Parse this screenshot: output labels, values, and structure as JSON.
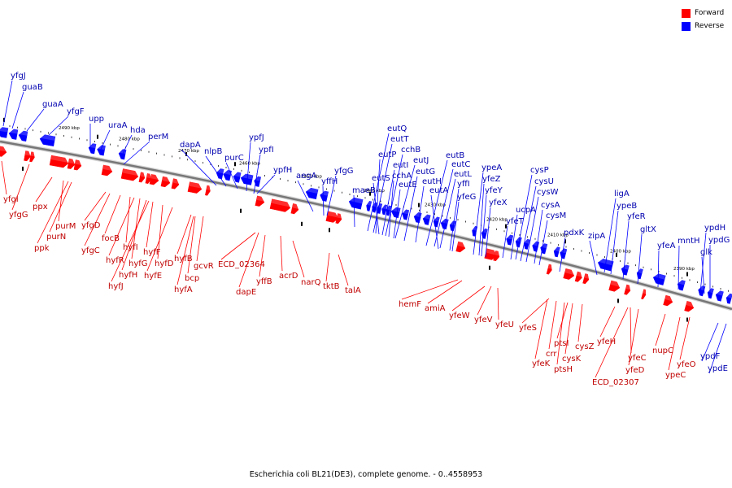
{
  "colors": {
    "forward": "#ff0000",
    "reverse": "#0000ff",
    "backbone": "#777777",
    "forward_text": "#c00000",
    "reverse_text": "#0000b0"
  },
  "legend": {
    "forward_label": "Forward",
    "reverse_label": "Reverse"
  },
  "caption": "Escherichia coli BL21(DE3), complete genome. - 0..4558953",
  "kbp_ticks": [
    "2490 kbp",
    "2480 kbp",
    "2470 kbp",
    "2460 kbp",
    "2450 kbp",
    "2440 kbp",
    "2430 kbp",
    "2420 kbp",
    "2410 kbp",
    "2400 kbp",
    "2390 kbp"
  ],
  "reverse_genes": [
    "yfgJ",
    "guaB",
    "guaA",
    "yfgF",
    "upp",
    "uraA",
    "hda",
    "perM",
    "dapA",
    "nlpB",
    "purC",
    "ypfJ",
    "ypfI",
    "ypfH",
    "aegA",
    "yffH",
    "yfgG",
    "maeB",
    "eutQ",
    "eutT",
    "eutP",
    "eutS",
    "eutI",
    "cchB",
    "cchA",
    "eutJ",
    "eutE",
    "eutG",
    "eutH",
    "eutB",
    "eutC",
    "eutL",
    "yffI",
    "eutA",
    "yfeG",
    "ypeA",
    "yfeZ",
    "yfeY",
    "yfeX",
    "cysP",
    "cysU",
    "ucpA",
    "cysW",
    "yfeT",
    "cysA",
    "cysM",
    "ligA",
    "pdxK",
    "ypeB",
    "yfeR",
    "zipA",
    "gltX",
    "yfeA",
    "mntH",
    "ypdH",
    "ypdG",
    "glk",
    "ypdF",
    "ypdE"
  ],
  "forward_genes": [
    "yfgI",
    "yfgG",
    "ppx",
    "purM",
    "purN",
    "ppk",
    "yfgD",
    "yfgC",
    "focB",
    "hyfI",
    "hyfR",
    "hyfG",
    "hyfH",
    "hyfF",
    "hyfJ",
    "hyfD",
    "hyfE",
    "hyfB",
    "gcvR",
    "bcp",
    "hyfA",
    "ECD_02364",
    "dapE",
    "yffB",
    "acrD",
    "narQ",
    "tktB",
    "talA",
    "hemF",
    "amiA",
    "yfeW",
    "yfeV",
    "yfeU",
    "yfeS",
    "ptsI",
    "cysZ",
    "crr",
    "cysK",
    "ptsH",
    "yfeK",
    "yfeH",
    "yfeC",
    "yfeD",
    "ECD_02307",
    "nupC",
    "ypeC",
    "yfeO"
  ]
}
